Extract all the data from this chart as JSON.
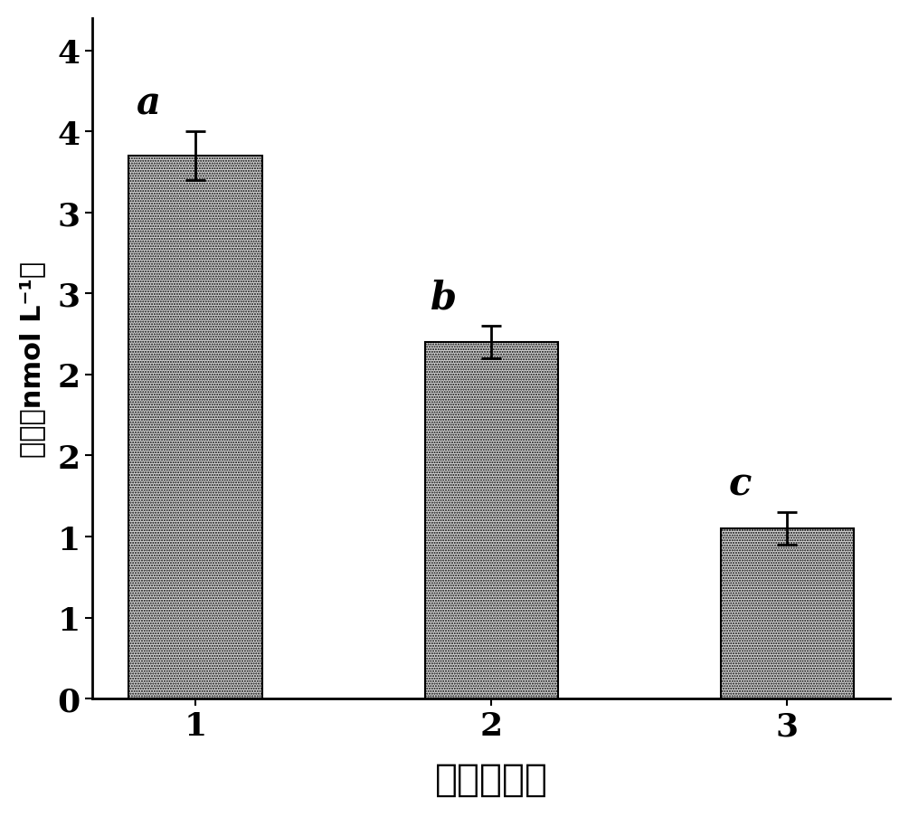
{
  "categories": [
    "1",
    "2",
    "3"
  ],
  "values": [
    3.35,
    2.2,
    1.05
  ],
  "errors": [
    0.15,
    0.1,
    0.1
  ],
  "letters": [
    "a",
    "b",
    "c"
  ],
  "bar_color": "#d4d4d4",
  "bar_edgecolor": "#000000",
  "ylabel": "含量（nmol L⁻¹）",
  "xlabel": "饲料处理组",
  "ylim": [
    0,
    4.2
  ],
  "yticks": [
    0,
    0.5,
    1.0,
    1.5,
    2.0,
    2.5,
    3.0,
    3.5,
    4.0
  ],
  "ytick_labels": [
    "0",
    "1",
    "1",
    "2",
    "2",
    "3",
    "3",
    "4",
    "4"
  ],
  "bar_width": 0.45,
  "background_color": "#ffffff",
  "xlabel_fontsize": 30,
  "ylabel_fontsize": 22,
  "tick_fontsize": 26,
  "letter_fontsize": 30
}
